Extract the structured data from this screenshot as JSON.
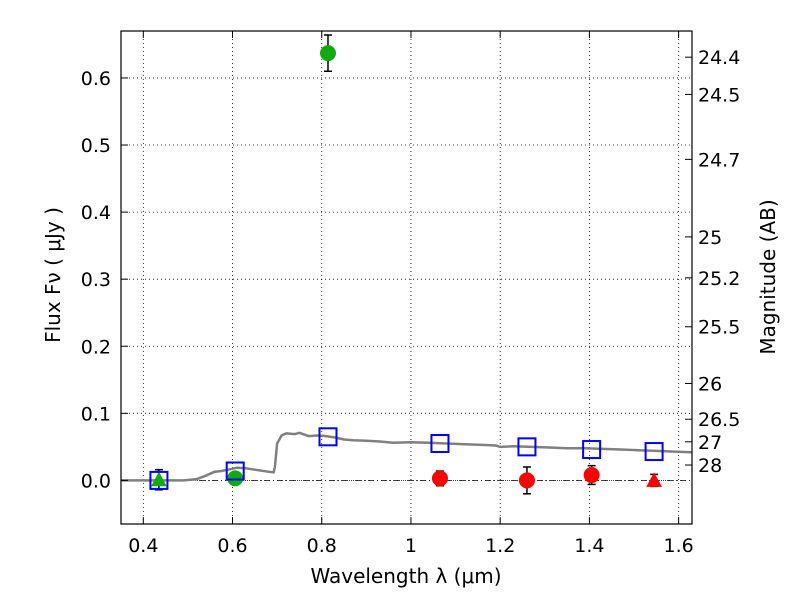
{
  "chart_data": {
    "type": "scatter",
    "xlabel": "Wavelength  λ (μm)",
    "ylabel": "Flux  Fν  ( μJy )",
    "y2label": "Magnitude (AB)",
    "xlim": [
      0.35,
      1.63
    ],
    "ylim": [
      -0.065,
      0.67
    ],
    "x_ticks": [
      0.4,
      0.6,
      0.8,
      1.0,
      1.2,
      1.4,
      1.6
    ],
    "x_tick_labels": [
      "0.4",
      "0.6",
      "0.8",
      "1",
      "1.2",
      "1.4",
      "1.6"
    ],
    "y_ticks": [
      0.0,
      0.1,
      0.2,
      0.3,
      0.4,
      0.5,
      0.6
    ],
    "y_tick_labels": [
      "0.0",
      "0.1",
      "0.2",
      "0.3",
      "0.4",
      "0.5",
      "0.6"
    ],
    "mag_ticks": [
      "24.4",
      "24.5",
      "24.7",
      "25",
      "25.2",
      "25.5",
      "26",
      "26.5",
      "27",
      "28"
    ],
    "grid": true,
    "colors": {
      "green": "#11aa11",
      "red": "#ff0000",
      "blue": "#0000ff",
      "model": "#808080",
      "zero_line": "#000000"
    },
    "series": [
      {
        "marker": "circle",
        "color": "green",
        "points": [
          {
            "x": 0.606,
            "y": 0.003,
            "err": 0.007
          },
          {
            "x": 0.814,
            "y": 0.637,
            "err": 0.027
          }
        ]
      },
      {
        "marker": "triangle",
        "color": "green",
        "points": [
          {
            "x": 0.435,
            "y": 0.001,
            "err": 0.015
          }
        ]
      },
      {
        "marker": "circle",
        "color": "red",
        "points": [
          {
            "x": 1.065,
            "y": 0.003,
            "err": 0.011
          },
          {
            "x": 1.26,
            "y": 0.0,
            "err": 0.02
          },
          {
            "x": 1.405,
            "y": 0.008,
            "err": 0.014
          }
        ]
      },
      {
        "marker": "triangle",
        "color": "red",
        "points": [
          {
            "x": 1.545,
            "y": 0.0,
            "err": 0.009
          }
        ]
      },
      {
        "marker": "square",
        "color": "blue",
        "points": [
          {
            "x": 0.435,
            "y": 0.0
          },
          {
            "x": 0.606,
            "y": 0.014
          },
          {
            "x": 0.814,
            "y": 0.065
          },
          {
            "x": 1.065,
            "y": 0.055
          },
          {
            "x": 1.26,
            "y": 0.05
          },
          {
            "x": 1.405,
            "y": 0.046
          },
          {
            "x": 1.545,
            "y": 0.043
          }
        ]
      },
      {
        "type": "line",
        "color": "model",
        "points": [
          [
            0.35,
            0.0
          ],
          [
            0.49,
            0.0
          ],
          [
            0.52,
            0.002
          ],
          [
            0.54,
            0.007
          ],
          [
            0.56,
            0.013
          ],
          [
            0.575,
            0.014
          ],
          [
            0.59,
            0.016
          ],
          [
            0.61,
            0.019
          ],
          [
            0.63,
            0.018
          ],
          [
            0.65,
            0.016
          ],
          [
            0.68,
            0.013
          ],
          [
            0.692,
            0.012
          ],
          [
            0.695,
            0.02
          ],
          [
            0.7,
            0.055
          ],
          [
            0.71,
            0.067
          ],
          [
            0.72,
            0.07
          ],
          [
            0.74,
            0.069
          ],
          [
            0.75,
            0.071
          ],
          [
            0.77,
            0.066
          ],
          [
            0.79,
            0.067
          ],
          [
            0.81,
            0.066
          ],
          [
            0.83,
            0.064
          ],
          [
            0.85,
            0.061
          ],
          [
            0.87,
            0.06
          ],
          [
            0.9,
            0.059
          ],
          [
            0.93,
            0.058
          ],
          [
            0.96,
            0.056
          ],
          [
            1.0,
            0.057
          ],
          [
            1.04,
            0.056
          ],
          [
            1.08,
            0.055
          ],
          [
            1.12,
            0.054
          ],
          [
            1.16,
            0.053
          ],
          [
            1.19,
            0.052
          ],
          [
            1.2,
            0.05
          ],
          [
            1.23,
            0.051
          ],
          [
            1.27,
            0.05
          ],
          [
            1.31,
            0.049
          ],
          [
            1.35,
            0.048
          ],
          [
            1.39,
            0.048
          ],
          [
            1.43,
            0.047
          ],
          [
            1.47,
            0.046
          ],
          [
            1.51,
            0.045
          ],
          [
            1.55,
            0.044
          ],
          [
            1.59,
            0.043
          ],
          [
            1.63,
            0.042
          ]
        ]
      }
    ]
  }
}
